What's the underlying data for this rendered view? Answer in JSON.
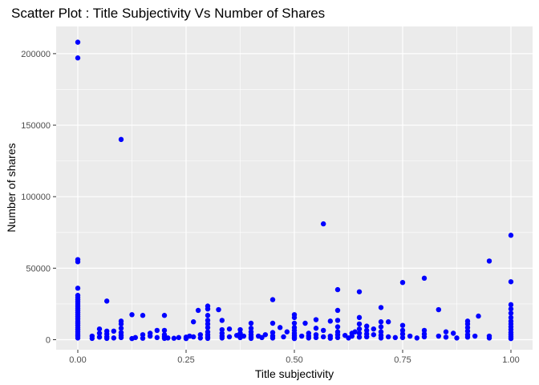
{
  "chart_data": {
    "type": "scatter",
    "title": "Scatter Plot : Title Subjectivity Vs Number of Shares",
    "xlabel": "Title subjectivity",
    "ylabel": "Number of shares",
    "xlim": [
      -0.05,
      1.05
    ],
    "ylim": [
      -7000,
      219000
    ],
    "x_ticks": [
      0,
      0.25,
      0.5,
      0.75,
      1
    ],
    "x_tick_labels": [
      "0.00",
      "0.25",
      "0.50",
      "0.75",
      "1.00"
    ],
    "y_ticks": [
      0,
      50000,
      100000,
      150000,
      200000
    ],
    "y_tick_labels": [
      "0",
      "50000",
      "100000",
      "150000",
      "200000"
    ],
    "grid": true,
    "point_color": "#0000ff",
    "panel_color": "#ebebeb",
    "grid_color": "#ffffff",
    "points": [
      [
        0,
        208000
      ],
      [
        0,
        197000
      ],
      [
        0.1,
        140000
      ],
      [
        0.567,
        81000
      ],
      [
        1,
        73000
      ],
      [
        0,
        56000
      ],
      [
        0,
        54500
      ],
      [
        0.95,
        55000
      ],
      [
        0.8,
        43000
      ],
      [
        1,
        40500
      ],
      [
        0.75,
        40000
      ],
      [
        0,
        36000
      ],
      [
        0.6,
        35000
      ],
      [
        0.65,
        33500
      ],
      [
        0,
        31000
      ],
      [
        0,
        29500
      ],
      [
        0,
        28000
      ],
      [
        0,
        26500
      ],
      [
        0,
        25000
      ],
      [
        0,
        23500
      ],
      [
        0,
        22000
      ],
      [
        0,
        20500
      ],
      [
        0,
        19000
      ],
      [
        0,
        17500
      ],
      [
        0,
        16000
      ],
      [
        0,
        14500
      ],
      [
        0,
        13000
      ],
      [
        0,
        11500
      ],
      [
        0,
        10000
      ],
      [
        0,
        8500
      ],
      [
        0,
        7000
      ],
      [
        0,
        5500
      ],
      [
        0,
        4000
      ],
      [
        0,
        2500
      ],
      [
        0,
        1200
      ],
      [
        0.067,
        27000
      ],
      [
        0.067,
        6000
      ],
      [
        0.067,
        4000
      ],
      [
        0.067,
        2000
      ],
      [
        0.067,
        900
      ],
      [
        0.1,
        13000
      ],
      [
        0.1,
        11000
      ],
      [
        0.1,
        8000
      ],
      [
        0.1,
        5000
      ],
      [
        0.1,
        3000
      ],
      [
        0.1,
        1500
      ],
      [
        0.033,
        900
      ],
      [
        0.033,
        2500
      ],
      [
        0.05,
        7500
      ],
      [
        0.05,
        4500
      ],
      [
        0.05,
        1800
      ],
      [
        0.083,
        6000
      ],
      [
        0.083,
        1200
      ],
      [
        0.125,
        17500
      ],
      [
        0.133,
        1500
      ],
      [
        0.125,
        800
      ],
      [
        0.15,
        17000
      ],
      [
        0.15,
        3500
      ],
      [
        0.15,
        1000
      ],
      [
        0.167,
        2500
      ],
      [
        0.167,
        4500
      ],
      [
        0.183,
        6500
      ],
      [
        0.183,
        1500
      ],
      [
        0.2,
        17000
      ],
      [
        0.2,
        6500
      ],
      [
        0.2,
        3500
      ],
      [
        0.2,
        2000
      ],
      [
        0.2,
        900
      ],
      [
        0.208,
        1200
      ],
      [
        0.222,
        1000
      ],
      [
        0.233,
        1500
      ],
      [
        0.25,
        1800
      ],
      [
        0.25,
        800
      ],
      [
        0.258,
        2500
      ],
      [
        0.267,
        2000
      ],
      [
        0.267,
        12500
      ],
      [
        0.278,
        20500
      ],
      [
        0.283,
        3500
      ],
      [
        0.283,
        1200
      ],
      [
        0.3,
        23500
      ],
      [
        0.3,
        21500
      ],
      [
        0.3,
        17000
      ],
      [
        0.3,
        13500
      ],
      [
        0.3,
        11000
      ],
      [
        0.3,
        8500
      ],
      [
        0.3,
        5500
      ],
      [
        0.3,
        3500
      ],
      [
        0.3,
        1800
      ],
      [
        0.3,
        900
      ],
      [
        0.325,
        21000
      ],
      [
        0.333,
        13500
      ],
      [
        0.333,
        7000
      ],
      [
        0.333,
        4500
      ],
      [
        0.333,
        2500
      ],
      [
        0.333,
        1200
      ],
      [
        0.35,
        7500
      ],
      [
        0.35,
        2000
      ],
      [
        0.367,
        3000
      ],
      [
        0.375,
        7000
      ],
      [
        0.375,
        4500
      ],
      [
        0.375,
        1500
      ],
      [
        0.383,
        2500
      ],
      [
        0.4,
        11500
      ],
      [
        0.4,
        8000
      ],
      [
        0.4,
        5500
      ],
      [
        0.4,
        3500
      ],
      [
        0.4,
        1800
      ],
      [
        0.4,
        900
      ],
      [
        0.417,
        2500
      ],
      [
        0.425,
        1500
      ],
      [
        0.433,
        3500
      ],
      [
        0.45,
        28000
      ],
      [
        0.45,
        11500
      ],
      [
        0.45,
        5000
      ],
      [
        0.45,
        2500
      ],
      [
        0.45,
        1200
      ],
      [
        0.467,
        8500
      ],
      [
        0.475,
        2000
      ],
      [
        0.483,
        5500
      ],
      [
        0.5,
        17500
      ],
      [
        0.5,
        15500
      ],
      [
        0.5,
        11500
      ],
      [
        0.5,
        8500
      ],
      [
        0.5,
        6500
      ],
      [
        0.5,
        4500
      ],
      [
        0.5,
        3000
      ],
      [
        0.5,
        1800
      ],
      [
        0.5,
        800
      ],
      [
        0.517,
        2500
      ],
      [
        0.525,
        11500
      ],
      [
        0.533,
        4500
      ],
      [
        0.533,
        2500
      ],
      [
        0.533,
        1200
      ],
      [
        0.55,
        14000
      ],
      [
        0.55,
        8000
      ],
      [
        0.55,
        3500
      ],
      [
        0.55,
        1500
      ],
      [
        0.567,
        6500
      ],
      [
        0.567,
        2000
      ],
      [
        0.583,
        13000
      ],
      [
        0.583,
        2500
      ],
      [
        0.583,
        1000
      ],
      [
        0.6,
        20500
      ],
      [
        0.6,
        13500
      ],
      [
        0.6,
        9000
      ],
      [
        0.6,
        5500
      ],
      [
        0.6,
        3500
      ],
      [
        0.6,
        1500
      ],
      [
        0.617,
        3000
      ],
      [
        0.625,
        1200
      ],
      [
        0.633,
        2500
      ],
      [
        0.633,
        4500
      ],
      [
        0.64,
        5500
      ],
      [
        0.65,
        15500
      ],
      [
        0.65,
        11000
      ],
      [
        0.65,
        7500
      ],
      [
        0.65,
        4500
      ],
      [
        0.65,
        1800
      ],
      [
        0.667,
        9500
      ],
      [
        0.667,
        6500
      ],
      [
        0.667,
        4000
      ],
      [
        0.667,
        2000
      ],
      [
        0.683,
        7500
      ],
      [
        0.683,
        3500
      ],
      [
        0.7,
        22500
      ],
      [
        0.7,
        12500
      ],
      [
        0.7,
        9000
      ],
      [
        0.7,
        5500
      ],
      [
        0.7,
        3000
      ],
      [
        0.7,
        1200
      ],
      [
        0.717,
        12500
      ],
      [
        0.717,
        2000
      ],
      [
        0.733,
        1500
      ],
      [
        0.75,
        10000
      ],
      [
        0.75,
        6500
      ],
      [
        0.75,
        4000
      ],
      [
        0.75,
        1500
      ],
      [
        0.767,
        2500
      ],
      [
        0.783,
        1200
      ],
      [
        0.8,
        6500
      ],
      [
        0.8,
        4000
      ],
      [
        0.8,
        2000
      ],
      [
        0.833,
        21000
      ],
      [
        0.833,
        2500
      ],
      [
        0.85,
        5500
      ],
      [
        0.85,
        1800
      ],
      [
        0.867,
        4500
      ],
      [
        0.875,
        1200
      ],
      [
        0.9,
        13000
      ],
      [
        0.9,
        11000
      ],
      [
        0.9,
        8500
      ],
      [
        0.9,
        6000
      ],
      [
        0.9,
        3500
      ],
      [
        0.9,
        1800
      ],
      [
        0.917,
        2500
      ],
      [
        0.925,
        16500
      ],
      [
        0.95,
        1200
      ],
      [
        0.95,
        2500
      ],
      [
        1,
        24500
      ],
      [
        1,
        21500
      ],
      [
        1,
        18500
      ],
      [
        1,
        15500
      ],
      [
        1,
        13000
      ],
      [
        1,
        11000
      ],
      [
        1,
        9000
      ],
      [
        1,
        7000
      ],
      [
        1,
        5000
      ],
      [
        1,
        3500
      ],
      [
        1,
        2000
      ],
      [
        1,
        800
      ]
    ]
  }
}
